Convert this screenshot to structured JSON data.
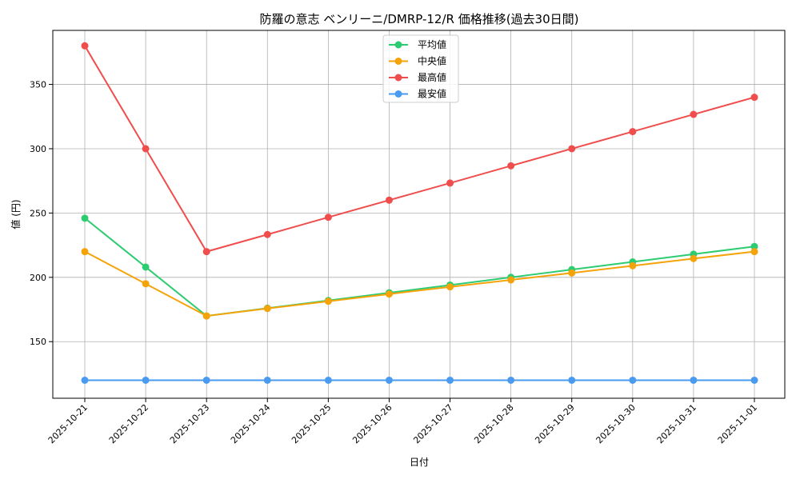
{
  "chart_data": {
    "type": "line",
    "title": "防羅の意志 ベンリーニ/DMRP-12/R 価格推移(過去30日間)",
    "xlabel": "日付",
    "ylabel": "値 (円)",
    "categories": [
      "2025-10-21",
      "2025-10-22",
      "2025-10-23",
      "2025-10-24",
      "2025-10-25",
      "2025-10-26",
      "2025-10-27",
      "2025-10-28",
      "2025-10-29",
      "2025-10-30",
      "2025-10-31",
      "2025-11-01"
    ],
    "ylim": [
      106,
      392
    ],
    "yticks": [
      150,
      200,
      250,
      300,
      350
    ],
    "grid": true,
    "legend_position": "top-center",
    "series": [
      {
        "name": "平均値",
        "color": "#2ecc71",
        "values": [
          246,
          208,
          170,
          176,
          182,
          188,
          194,
          200,
          206,
          212,
          218,
          224
        ]
      },
      {
        "name": "中央値",
        "color": "#f5a30a",
        "values": [
          220,
          195,
          170,
          175.8,
          181.4,
          187,
          192.6,
          198,
          203.4,
          209,
          214.6,
          220
        ]
      },
      {
        "name": "最高値",
        "color": "#f04d4d",
        "values": [
          380,
          300,
          220,
          233.3,
          246.7,
          260,
          273.3,
          286.7,
          300,
          313.3,
          326.7,
          340
        ]
      },
      {
        "name": "最安値",
        "color": "#4a9af0",
        "values": [
          120,
          120,
          120,
          120,
          120,
          120,
          120,
          120,
          120,
          120,
          120,
          120
        ]
      }
    ]
  }
}
